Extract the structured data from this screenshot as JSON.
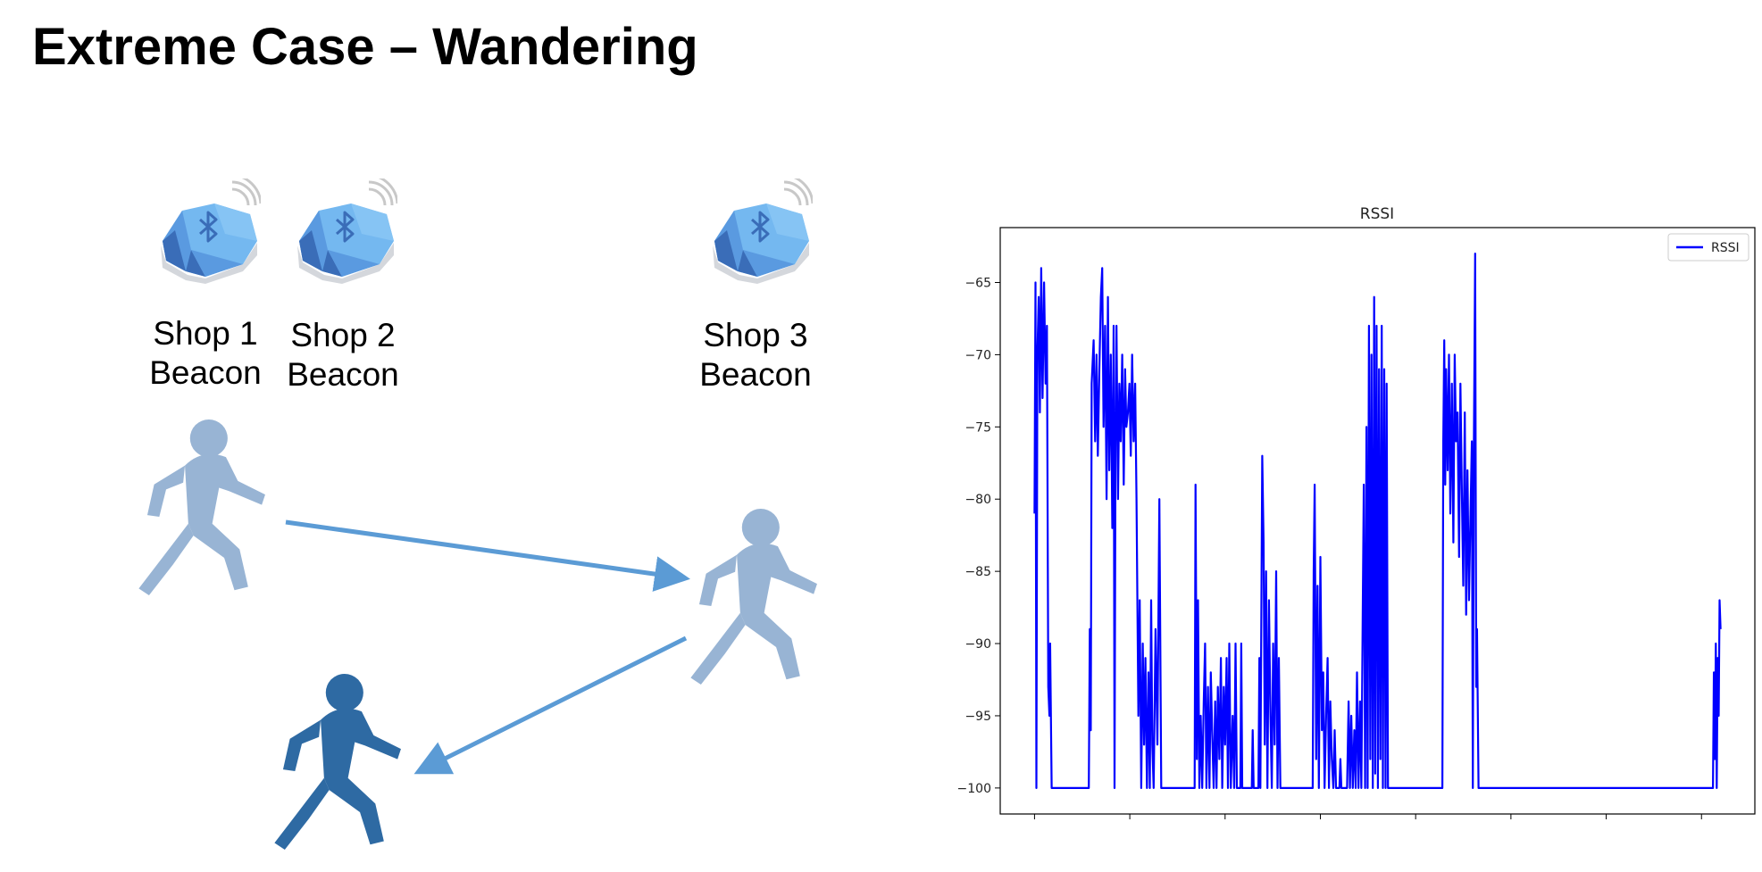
{
  "slide": {
    "title": "Extreme Case – Wandering"
  },
  "beacons": [
    {
      "line1": "Shop 1",
      "line2": "Beacon",
      "icon": "bluetooth-beacon-icon"
    },
    {
      "line1": "Shop 2",
      "line2": "Beacon",
      "icon": "bluetooth-beacon-icon"
    },
    {
      "line1": "Shop 3",
      "line2": "Beacon",
      "icon": "bluetooth-beacon-icon"
    }
  ],
  "people": [
    {
      "icon": "walking-person-icon",
      "color": "#98b4d4"
    },
    {
      "icon": "walking-person-icon",
      "color": "#98b4d4"
    },
    {
      "icon": "walking-person-icon",
      "color": "#2e6aa3"
    }
  ],
  "colors": {
    "arrow": "#5b9bd5",
    "beacon_light": "#74b8f0",
    "beacon_mid": "#5a9ae0",
    "beacon_dark": "#3a6db8",
    "series": "#0000ff"
  },
  "chart_data": {
    "type": "line",
    "title": "RSSI",
    "xlabel": "",
    "ylabel": "",
    "xlim": [
      -180,
      3780
    ],
    "ylim": [
      -101.8,
      -61.2
    ],
    "xticks": [
      0,
      500,
      1000,
      1500,
      2000,
      2500,
      3000,
      3500
    ],
    "yticks": [
      -65,
      -70,
      -75,
      -80,
      -85,
      -90,
      -95,
      -100
    ],
    "legend": "top-right",
    "grid": false,
    "series": [
      {
        "name": "RSSI",
        "color": "#0000ff",
        "points": [
          [
            0,
            -81
          ],
          [
            5,
            -65
          ],
          [
            10,
            -100
          ],
          [
            15,
            -70
          ],
          [
            22,
            -66
          ],
          [
            28,
            -74
          ],
          [
            35,
            -64
          ],
          [
            42,
            -73
          ],
          [
            50,
            -65
          ],
          [
            58,
            -72
          ],
          [
            65,
            -68
          ],
          [
            72,
            -93
          ],
          [
            78,
            -95
          ],
          [
            82,
            -90
          ],
          [
            90,
            -100
          ],
          [
            285,
            -100
          ],
          [
            290,
            -89
          ],
          [
            295,
            -96
          ],
          [
            300,
            -72
          ],
          [
            310,
            -69
          ],
          [
            318,
            -76
          ],
          [
            325,
            -70
          ],
          [
            332,
            -77
          ],
          [
            340,
            -71
          ],
          [
            348,
            -66
          ],
          [
            355,
            -64
          ],
          [
            362,
            -75
          ],
          [
            370,
            -68
          ],
          [
            378,
            -80
          ],
          [
            385,
            -66
          ],
          [
            392,
            -78
          ],
          [
            400,
            -70
          ],
          [
            408,
            -82
          ],
          [
            415,
            -68
          ],
          [
            420,
            -100
          ],
          [
            425,
            -76
          ],
          [
            430,
            -68
          ],
          [
            438,
            -80
          ],
          [
            445,
            -72
          ],
          [
            452,
            -76
          ],
          [
            460,
            -70
          ],
          [
            468,
            -79
          ],
          [
            475,
            -71
          ],
          [
            482,
            -75
          ],
          [
            490,
            -74
          ],
          [
            498,
            -72
          ],
          [
            505,
            -77
          ],
          [
            512,
            -70
          ],
          [
            520,
            -76
          ],
          [
            528,
            -72
          ],
          [
            535,
            -80
          ],
          [
            545,
            -95
          ],
          [
            552,
            -87
          ],
          [
            560,
            -100
          ],
          [
            568,
            -90
          ],
          [
            575,
            -97
          ],
          [
            582,
            -91
          ],
          [
            590,
            -100
          ],
          [
            598,
            -92
          ],
          [
            605,
            -100
          ],
          [
            612,
            -87
          ],
          [
            618,
            -97
          ],
          [
            625,
            -100
          ],
          [
            635,
            -89
          ],
          [
            645,
            -97
          ],
          [
            655,
            -80
          ],
          [
            665,
            -100
          ],
          [
            840,
            -100
          ],
          [
            845,
            -79
          ],
          [
            852,
            -98
          ],
          [
            858,
            -87
          ],
          [
            865,
            -100
          ],
          [
            872,
            -95
          ],
          [
            880,
            -100
          ],
          [
            888,
            -94
          ],
          [
            895,
            -90
          ],
          [
            902,
            -100
          ],
          [
            910,
            -93
          ],
          [
            918,
            -100
          ],
          [
            925,
            -92
          ],
          [
            932,
            -96
          ],
          [
            940,
            -100
          ],
          [
            948,
            -94
          ],
          [
            955,
            -100
          ],
          [
            962,
            -93
          ],
          [
            970,
            -98
          ],
          [
            978,
            -91
          ],
          [
            985,
            -100
          ],
          [
            993,
            -93
          ],
          [
            1000,
            -97
          ],
          [
            1008,
            -91
          ],
          [
            1015,
            -100
          ],
          [
            1022,
            -90
          ],
          [
            1030,
            -100
          ],
          [
            1040,
            -95
          ],
          [
            1048,
            -100
          ],
          [
            1055,
            -90
          ],
          [
            1062,
            -100
          ],
          [
            1080,
            -100
          ],
          [
            1085,
            -90
          ],
          [
            1090,
            -100
          ],
          [
            1140,
            -100
          ],
          [
            1145,
            -96
          ],
          [
            1150,
            -100
          ],
          [
            1175,
            -100
          ],
          [
            1180,
            -91
          ],
          [
            1185,
            -100
          ],
          [
            1195,
            -77
          ],
          [
            1202,
            -83
          ],
          [
            1208,
            -97
          ],
          [
            1215,
            -85
          ],
          [
            1222,
            -100
          ],
          [
            1230,
            -87
          ],
          [
            1238,
            -95
          ],
          [
            1245,
            -100
          ],
          [
            1252,
            -90
          ],
          [
            1260,
            -97
          ],
          [
            1268,
            -85
          ],
          [
            1275,
            -100
          ],
          [
            1282,
            -91
          ],
          [
            1290,
            -100
          ],
          [
            1460,
            -100
          ],
          [
            1465,
            -85
          ],
          [
            1470,
            -79
          ],
          [
            1478,
            -98
          ],
          [
            1485,
            -86
          ],
          [
            1492,
            -100
          ],
          [
            1500,
            -84
          ],
          [
            1508,
            -96
          ],
          [
            1515,
            -92
          ],
          [
            1522,
            -100
          ],
          [
            1530,
            -95
          ],
          [
            1538,
            -91
          ],
          [
            1545,
            -100
          ],
          [
            1552,
            -94
          ],
          [
            1560,
            -98
          ],
          [
            1568,
            -100
          ],
          [
            1575,
            -96
          ],
          [
            1582,
            -100
          ],
          [
            1600,
            -100
          ],
          [
            1605,
            -98
          ],
          [
            1610,
            -100
          ],
          [
            1640,
            -100
          ],
          [
            1648,
            -94
          ],
          [
            1655,
            -100
          ],
          [
            1662,
            -95
          ],
          [
            1670,
            -100
          ],
          [
            1678,
            -96
          ],
          [
            1685,
            -100
          ],
          [
            1692,
            -92
          ],
          [
            1700,
            -100
          ],
          [
            1708,
            -94
          ],
          [
            1715,
            -100
          ],
          [
            1722,
            -88
          ],
          [
            1728,
            -79
          ],
          [
            1735,
            -100
          ],
          [
            1742,
            -75
          ],
          [
            1748,
            -100
          ],
          [
            1755,
            -68
          ],
          [
            1762,
            -98
          ],
          [
            1768,
            -70
          ],
          [
            1775,
            -100
          ],
          [
            1782,
            -66
          ],
          [
            1788,
            -99
          ],
          [
            1795,
            -68
          ],
          [
            1802,
            -100
          ],
          [
            1808,
            -71
          ],
          [
            1815,
            -98
          ],
          [
            1822,
            -68
          ],
          [
            1828,
            -100
          ],
          [
            1835,
            -71
          ],
          [
            1842,
            -100
          ],
          [
            1848,
            -72
          ],
          [
            1855,
            -100
          ],
          [
            2140,
            -100
          ],
          [
            2145,
            -76
          ],
          [
            2150,
            -69
          ],
          [
            2155,
            -79
          ],
          [
            2160,
            -71
          ],
          [
            2168,
            -78
          ],
          [
            2175,
            -70
          ],
          [
            2182,
            -81
          ],
          [
            2190,
            -72
          ],
          [
            2198,
            -83
          ],
          [
            2205,
            -70
          ],
          [
            2212,
            -76
          ],
          [
            2220,
            -74
          ],
          [
            2228,
            -84
          ],
          [
            2235,
            -72
          ],
          [
            2242,
            -79
          ],
          [
            2250,
            -86
          ],
          [
            2258,
            -74
          ],
          [
            2265,
            -88
          ],
          [
            2272,
            -78
          ],
          [
            2280,
            -87
          ],
          [
            2288,
            -81
          ],
          [
            2295,
            -76
          ],
          [
            2300,
            -100
          ],
          [
            2305,
            -77
          ],
          [
            2312,
            -63
          ],
          [
            2318,
            -93
          ],
          [
            2322,
            -89
          ],
          [
            2330,
            -100
          ],
          [
            3560,
            -100
          ],
          [
            3565,
            -92
          ],
          [
            3570,
            -98
          ],
          [
            3575,
            -90
          ],
          [
            3580,
            -100
          ],
          [
            3585,
            -91
          ],
          [
            3590,
            -95
          ],
          [
            3595,
            -87
          ],
          [
            3600,
            -89
          ]
        ]
      }
    ]
  }
}
